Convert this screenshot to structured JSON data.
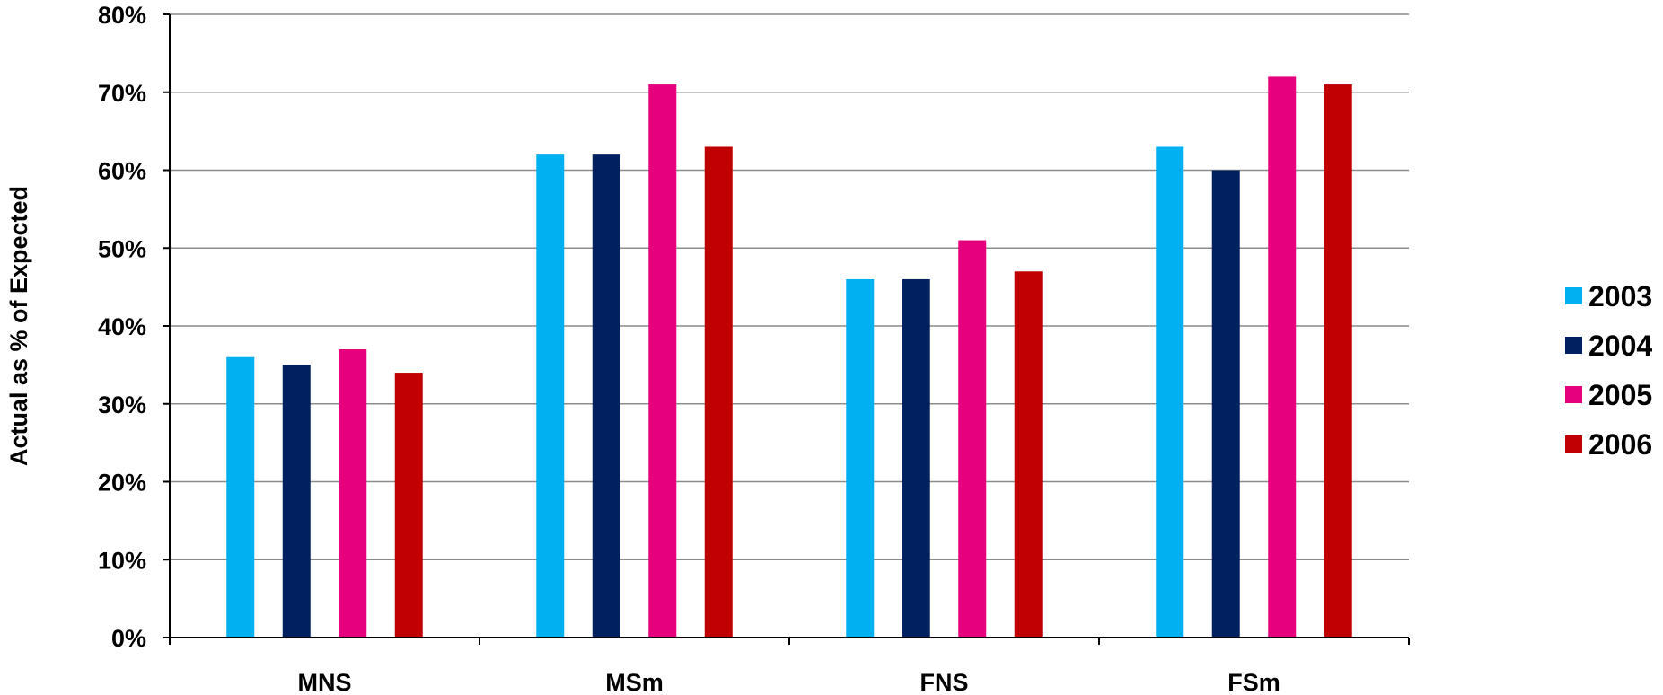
{
  "chart_data": {
    "type": "bar",
    "title": "",
    "xlabel": "",
    "ylabel": "Actual as % of Expected",
    "ylim": [
      0,
      80
    ],
    "y_ticks": [
      0,
      10,
      20,
      30,
      40,
      50,
      60,
      70,
      80
    ],
    "y_tick_labels": [
      "0%",
      "10%",
      "20%",
      "30%",
      "40%",
      "50%",
      "60%",
      "70%",
      "80%"
    ],
    "grid": true,
    "legend_position": "right",
    "categories": [
      "MNS",
      "MSm",
      "FNS",
      "FSm"
    ],
    "series": [
      {
        "name": "2003",
        "color": "#00B0F0",
        "values": [
          36,
          62,
          46,
          63
        ]
      },
      {
        "name": "2004",
        "color": "#002060",
        "values": [
          35,
          62,
          46,
          60
        ]
      },
      {
        "name": "2005",
        "color": "#E6007E",
        "values": [
          37,
          71,
          51,
          72
        ]
      },
      {
        "name": "2006",
        "color": "#C00000",
        "values": [
          34,
          63,
          47,
          71
        ]
      }
    ]
  }
}
